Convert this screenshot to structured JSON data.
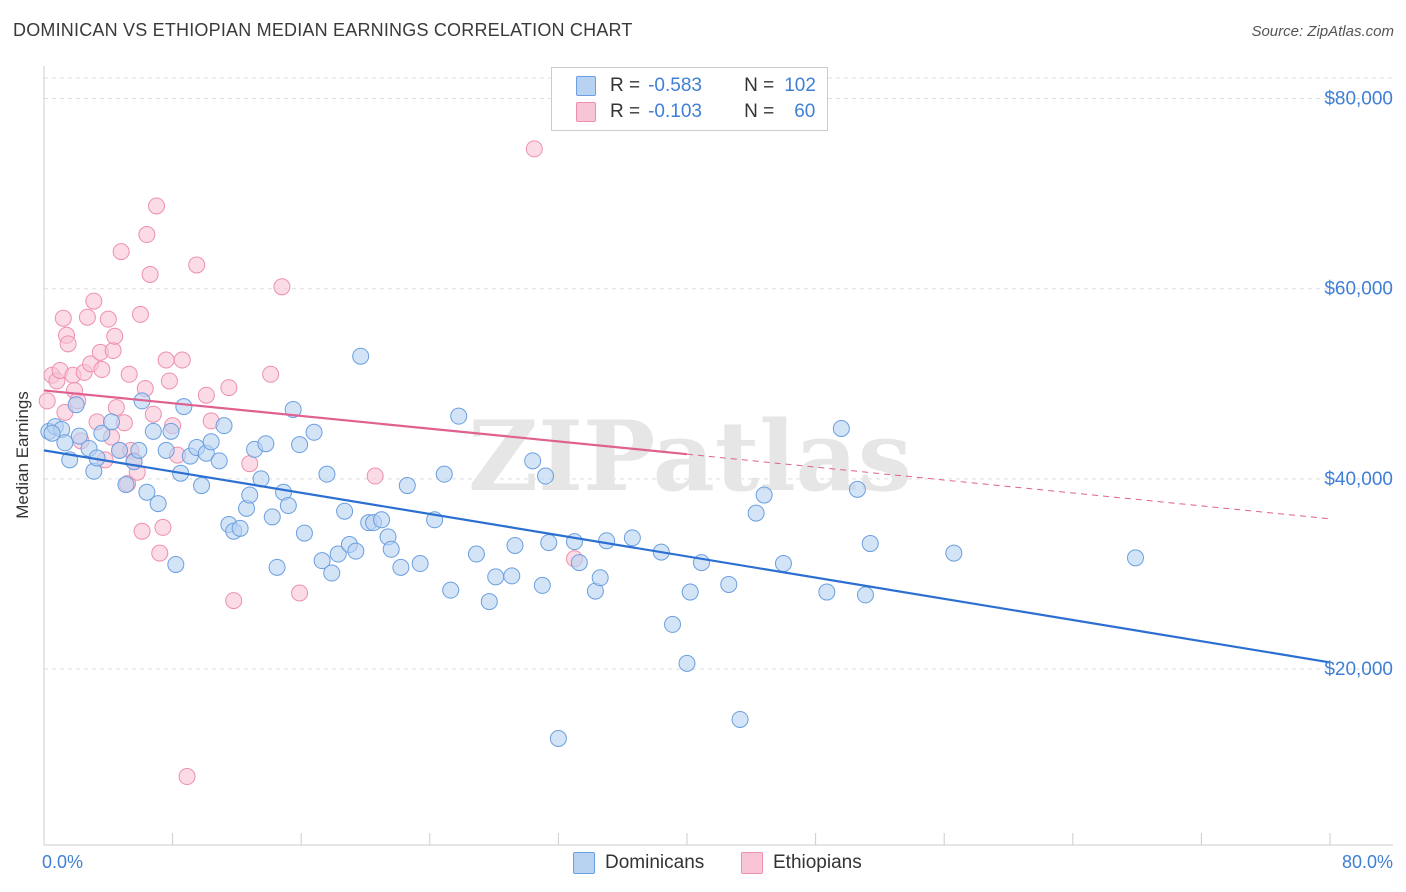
{
  "title": "DOMINICAN VS ETHIOPIAN MEDIAN EARNINGS CORRELATION CHART",
  "source": "Source: ZipAtlas.com",
  "watermark": "ZIPatlas",
  "legend": {
    "rows": [
      {
        "r_label": "R =",
        "r_value": "-0.583",
        "n_label": "N =",
        "n_value": "102"
      },
      {
        "r_label": "R =",
        "r_value": "-0.103",
        "n_label": "N =",
        "n_value": "60"
      }
    ]
  },
  "bottom_legend": {
    "dominicans": "Dominicans",
    "ethiopians": "Ethiopians"
  },
  "colors": {
    "dominicans_fill": "#b8d2f1",
    "dominicans_stroke": "#6b9fe0",
    "dominicans_line": "#2b6fd1",
    "ethiopians_fill": "#f8c5d6",
    "ethiopians_stroke": "#ee8fb0",
    "ethiopians_line": "#e0608f",
    "tick_text": "#3f7fd6"
  },
  "chart_data": {
    "type": "scatter",
    "title": "DOMINICAN VS ETHIOPIAN MEDIAN EARNINGS CORRELATION CHART",
    "ylabel": "Median Earnings",
    "xlabel": "",
    "xlim": [
      0,
      80
    ],
    "ylim": [
      1500,
      83000
    ],
    "x_tick_labels": {
      "left": "0.0%",
      "right": "80.0%"
    },
    "y_ticks": [
      20000,
      40000,
      60000,
      80000
    ],
    "y_tick_labels": [
      "$20,000",
      "$40,000",
      "$60,000",
      "$80,000"
    ],
    "grid": "horizontal dashed",
    "legend_position": "top-center",
    "series": [
      {
        "name": "Dominicans",
        "trend": {
          "x": [
            0,
            80
          ],
          "y": [
            43000,
            20700
          ],
          "style": "solid"
        },
        "points": [
          [
            0.3,
            45000
          ],
          [
            0.7,
            45500
          ],
          [
            1.1,
            45200
          ],
          [
            1.3,
            43800
          ],
          [
            1.6,
            42000
          ],
          [
            2.0,
            47800
          ],
          [
            2.2,
            44500
          ],
          [
            2.8,
            43200
          ],
          [
            3.1,
            40800
          ],
          [
            3.3,
            42200
          ],
          [
            3.6,
            44800
          ],
          [
            4.2,
            46000
          ],
          [
            4.7,
            43000
          ],
          [
            5.1,
            39400
          ],
          [
            5.6,
            41800
          ],
          [
            5.9,
            43000
          ],
          [
            6.1,
            48200
          ],
          [
            6.4,
            38600
          ],
          [
            6.8,
            45000
          ],
          [
            7.1,
            37400
          ],
          [
            7.6,
            43000
          ],
          [
            7.9,
            45000
          ],
          [
            8.2,
            31000
          ],
          [
            8.5,
            40600
          ],
          [
            8.7,
            47600
          ],
          [
            9.1,
            42400
          ],
          [
            9.5,
            43300
          ],
          [
            9.8,
            39300
          ],
          [
            10.1,
            42700
          ],
          [
            10.4,
            43900
          ],
          [
            10.9,
            41900
          ],
          [
            11.2,
            45600
          ],
          [
            11.5,
            35200
          ],
          [
            11.8,
            34500
          ],
          [
            12.2,
            34800
          ],
          [
            12.6,
            36900
          ],
          [
            12.8,
            38300
          ],
          [
            13.1,
            43100
          ],
          [
            13.5,
            40000
          ],
          [
            13.8,
            43700
          ],
          [
            14.2,
            36000
          ],
          [
            14.5,
            30700
          ],
          [
            14.9,
            38600
          ],
          [
            15.2,
            37200
          ],
          [
            15.5,
            47300
          ],
          [
            15.9,
            43600
          ],
          [
            16.2,
            34300
          ],
          [
            16.8,
            44900
          ],
          [
            17.3,
            31400
          ],
          [
            17.6,
            40500
          ],
          [
            17.9,
            30100
          ],
          [
            18.3,
            32100
          ],
          [
            18.7,
            36600
          ],
          [
            19.0,
            33100
          ],
          [
            19.4,
            32400
          ],
          [
            19.7,
            52900
          ],
          [
            20.2,
            35400
          ],
          [
            20.5,
            35400
          ],
          [
            21.0,
            35700
          ],
          [
            21.4,
            33900
          ],
          [
            21.6,
            32600
          ],
          [
            22.2,
            30700
          ],
          [
            22.6,
            39300
          ],
          [
            23.4,
            31100
          ],
          [
            24.3,
            35700
          ],
          [
            24.9,
            40500
          ],
          [
            25.3,
            28300
          ],
          [
            25.8,
            46600
          ],
          [
            26.9,
            32100
          ],
          [
            27.7,
            27100
          ],
          [
            28.1,
            29700
          ],
          [
            29.1,
            29800
          ],
          [
            29.3,
            33000
          ],
          [
            30.4,
            41900
          ],
          [
            31.0,
            28800
          ],
          [
            31.2,
            40300
          ],
          [
            31.4,
            33300
          ],
          [
            32.0,
            12700
          ],
          [
            33.0,
            33400
          ],
          [
            33.3,
            31200
          ],
          [
            34.3,
            28200
          ],
          [
            34.6,
            29600
          ],
          [
            35.0,
            33500
          ],
          [
            36.6,
            33800
          ],
          [
            38.4,
            32300
          ],
          [
            39.1,
            24700
          ],
          [
            40.0,
            20600
          ],
          [
            40.2,
            28100
          ],
          [
            40.9,
            31200
          ],
          [
            42.6,
            28900
          ],
          [
            43.3,
            14700
          ],
          [
            44.3,
            36400
          ],
          [
            44.8,
            38300
          ],
          [
            46.0,
            31100
          ],
          [
            48.7,
            28100
          ],
          [
            49.6,
            45300
          ],
          [
            50.6,
            38900
          ],
          [
            51.1,
            27800
          ],
          [
            51.4,
            33200
          ],
          [
            56.6,
            32200
          ],
          [
            67.9,
            31700
          ],
          [
            0.5,
            44800
          ]
        ]
      },
      {
        "name": "Ethiopians",
        "trend": {
          "x": [
            0,
            40
          ],
          "y": [
            49300,
            42600
          ],
          "x_dashed_to": 80,
          "y_dashed_to": 35800,
          "style": "solid then dashed"
        },
        "points": [
          [
            0.2,
            48200
          ],
          [
            0.5,
            50900
          ],
          [
            0.8,
            50300
          ],
          [
            1.0,
            51400
          ],
          [
            1.2,
            56900
          ],
          [
            1.4,
            55100
          ],
          [
            1.5,
            54200
          ],
          [
            1.8,
            50900
          ],
          [
            1.9,
            49300
          ],
          [
            2.1,
            48200
          ],
          [
            2.3,
            44000
          ],
          [
            2.5,
            51200
          ],
          [
            2.7,
            57000
          ],
          [
            2.9,
            52100
          ],
          [
            3.1,
            58700
          ],
          [
            3.3,
            46000
          ],
          [
            3.5,
            53300
          ],
          [
            3.6,
            51500
          ],
          [
            3.8,
            42000
          ],
          [
            4.0,
            56800
          ],
          [
            4.2,
            44400
          ],
          [
            4.3,
            53500
          ],
          [
            4.4,
            55000
          ],
          [
            4.5,
            47500
          ],
          [
            4.7,
            43000
          ],
          [
            4.8,
            63900
          ],
          [
            5.0,
            45900
          ],
          [
            5.2,
            39500
          ],
          [
            5.3,
            51000
          ],
          [
            5.4,
            43000
          ],
          [
            5.6,
            41900
          ],
          [
            5.8,
            40700
          ],
          [
            6.0,
            57300
          ],
          [
            6.1,
            34500
          ],
          [
            6.3,
            49500
          ],
          [
            6.4,
            65700
          ],
          [
            6.6,
            61500
          ],
          [
            6.8,
            46800
          ],
          [
            7.0,
            68700
          ],
          [
            7.2,
            32200
          ],
          [
            7.4,
            34900
          ],
          [
            7.6,
            52500
          ],
          [
            7.8,
            50300
          ],
          [
            8.0,
            45600
          ],
          [
            8.3,
            42500
          ],
          [
            8.6,
            52500
          ],
          [
            8.9,
            8700
          ],
          [
            9.5,
            62500
          ],
          [
            10.1,
            48800
          ],
          [
            10.4,
            46100
          ],
          [
            11.5,
            49600
          ],
          [
            11.8,
            27200
          ],
          [
            12.8,
            41600
          ],
          [
            14.1,
            51000
          ],
          [
            14.8,
            60200
          ],
          [
            15.9,
            28000
          ],
          [
            20.6,
            40300
          ],
          [
            30.5,
            74700
          ],
          [
            33.0,
            31600
          ],
          [
            1.3,
            47000
          ]
        ]
      }
    ]
  }
}
